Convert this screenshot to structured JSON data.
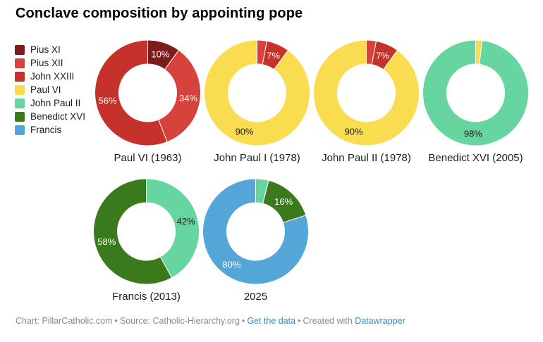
{
  "title": "Conclave composition by appointing pope",
  "legend": {
    "items": [
      {
        "label": "Pius XI",
        "color": "#7C1D1B"
      },
      {
        "label": "Pius XII",
        "color": "#D6433C"
      },
      {
        "label": "John XXIII",
        "color": "#C5312B"
      },
      {
        "label": "Paul VI",
        "color": "#F9DC4F"
      },
      {
        "label": "John Paul II",
        "color": "#66D5A0"
      },
      {
        "label": "Benedict XVI",
        "color": "#3A7A1D"
      },
      {
        "label": "Francis",
        "color": "#54A6D8"
      }
    ]
  },
  "chart_data": {
    "type": "pie",
    "subtype": "donut-multiples",
    "units": "%",
    "legend_position": "left",
    "donuts": [
      {
        "title": "Paul VI (1963)",
        "slices": [
          {
            "name": "Pius XI",
            "value": 10,
            "color": "#7C1D1B",
            "label": "10%",
            "label_color": "#ffffff"
          },
          {
            "name": "Pius XII",
            "value": 34,
            "color": "#D6433C",
            "label": "34%",
            "label_color": "#ffffff"
          },
          {
            "name": "John XXIII",
            "value": 56,
            "color": "#C5312B",
            "label": "56%",
            "label_color": "#ffffff"
          }
        ]
      },
      {
        "title": "John Paul I (1978)",
        "slices": [
          {
            "name": "Pius XII",
            "value": 3,
            "color": "#D6433C",
            "label": "",
            "label_color": "#ffffff"
          },
          {
            "name": "John XXIII",
            "value": 7,
            "color": "#C5312B",
            "label": "7%",
            "label_color": "#ffffff"
          },
          {
            "name": "Paul VI",
            "value": 90,
            "color": "#F9DC4F",
            "label": "90%",
            "label_color": "#1a1a1a"
          }
        ]
      },
      {
        "title": "John Paul II (1978)",
        "slices": [
          {
            "name": "Pius XII",
            "value": 3,
            "color": "#D6433C",
            "label": "",
            "label_color": "#ffffff"
          },
          {
            "name": "John XXIII",
            "value": 7,
            "color": "#C5312B",
            "label": "7%",
            "label_color": "#ffffff"
          },
          {
            "name": "Paul VI",
            "value": 90,
            "color": "#F9DC4F",
            "label": "90%",
            "label_color": "#1a1a1a"
          }
        ]
      },
      {
        "title": "Benedict XVI (2005)",
        "slices": [
          {
            "name": "Paul VI",
            "value": 2,
            "color": "#F9DC4F",
            "label": "",
            "label_color": "#1a1a1a"
          },
          {
            "name": "John Paul II",
            "value": 98,
            "color": "#66D5A0",
            "label": "98%",
            "label_color": "#1a1a1a"
          }
        ]
      },
      {
        "title": "Francis (2013)",
        "slices": [
          {
            "name": "John Paul II",
            "value": 42,
            "color": "#66D5A0",
            "label": "42%",
            "label_color": "#1a1a1a"
          },
          {
            "name": "Benedict XVI",
            "value": 58,
            "color": "#3A7A1D",
            "label": "58%",
            "label_color": "#ffffff"
          }
        ]
      },
      {
        "title": "2025",
        "slices": [
          {
            "name": "John Paul II",
            "value": 4,
            "color": "#66D5A0",
            "label": "",
            "label_color": "#1a1a1a"
          },
          {
            "name": "Benedict XVI",
            "value": 16,
            "color": "#3A7A1D",
            "label": "16%",
            "label_color": "#ffffff"
          },
          {
            "name": "Francis",
            "value": 80,
            "color": "#54A6D8",
            "label": "80%",
            "label_color": "#ffffff"
          }
        ]
      }
    ]
  },
  "footer": {
    "chart_credit": "Chart: PillarCatholic.com",
    "source": "Source: Catholic-Hierarchy.org",
    "sep": "•",
    "get_data_label": "Get the data",
    "created_with": "Created with",
    "datawrapper_label": "Datawrapper"
  }
}
